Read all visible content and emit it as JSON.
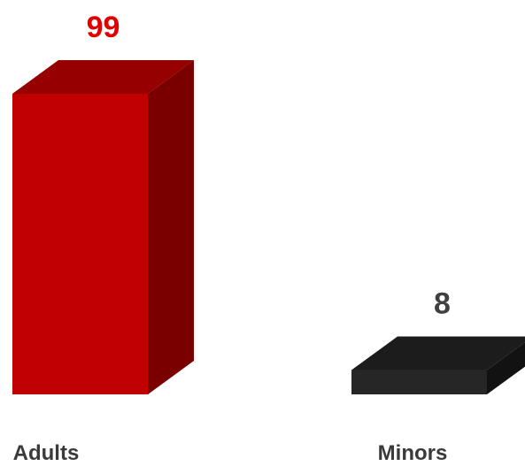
{
  "chart_data": {
    "type": "bar",
    "style": "3d",
    "categories": [
      "Adults",
      "Minors"
    ],
    "values": [
      99,
      8
    ],
    "colors": {
      "Adults": {
        "front": "#c00000",
        "top": "#960000",
        "side": "#7a0000",
        "label": "#e00000"
      },
      "Minors": {
        "front": "#262626",
        "top": "#1c1c1c",
        "side": "#121212",
        "label": "#404040"
      }
    },
    "ylim": [
      0,
      99
    ],
    "grid": false,
    "legend": "none"
  }
}
